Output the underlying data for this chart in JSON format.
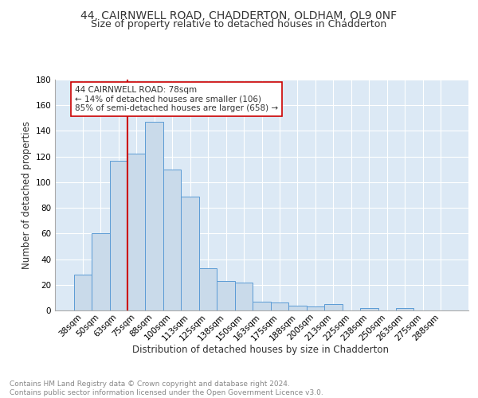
{
  "title1": "44, CAIRNWELL ROAD, CHADDERTON, OLDHAM, OL9 0NF",
  "title2": "Size of property relative to detached houses in Chadderton",
  "xlabel": "Distribution of detached houses by size in Chadderton",
  "ylabel": "Number of detached properties",
  "bar_labels": [
    "38sqm",
    "50sqm",
    "63sqm",
    "75sqm",
    "88sqm",
    "100sqm",
    "113sqm",
    "125sqm",
    "138sqm",
    "150sqm",
    "163sqm",
    "175sqm",
    "188sqm",
    "200sqm",
    "213sqm",
    "225sqm",
    "238sqm",
    "250sqm",
    "263sqm",
    "275sqm",
    "288sqm"
  ],
  "bar_values": [
    28,
    60,
    117,
    122,
    147,
    110,
    89,
    33,
    23,
    22,
    7,
    6,
    4,
    3,
    5,
    0,
    2,
    0,
    2,
    0,
    0
  ],
  "bar_color": "#c9daea",
  "bar_edge_color": "#5b9bd5",
  "vline_color": "#cc0000",
  "annotation_text": "44 CAIRNWELL ROAD: 78sqm\n← 14% of detached houses are smaller (106)\n85% of semi-detached houses are larger (658) →",
  "annotation_box_color": "#ffffff",
  "annotation_box_edge": "#cc0000",
  "ylim": [
    0,
    180
  ],
  "yticks": [
    0,
    20,
    40,
    60,
    80,
    100,
    120,
    140,
    160,
    180
  ],
  "footer": "Contains HM Land Registry data © Crown copyright and database right 2024.\nContains public sector information licensed under the Open Government Licence v3.0.",
  "bg_color": "#dce9f5",
  "grid_color": "#ffffff",
  "title1_fontsize": 10,
  "title2_fontsize": 9,
  "xlabel_fontsize": 8.5,
  "ylabel_fontsize": 8.5,
  "tick_fontsize": 7.5,
  "footer_fontsize": 6.5,
  "annotation_fontsize": 7.5
}
